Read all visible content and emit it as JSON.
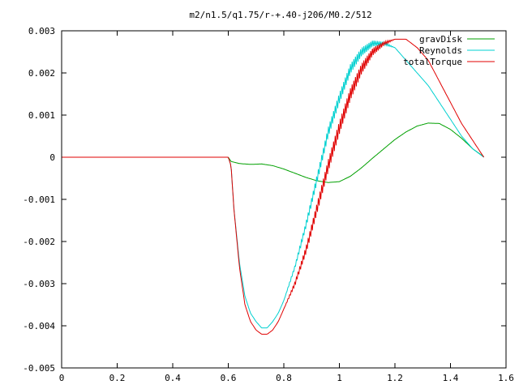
{
  "chart_data": {
    "type": "line",
    "title": "m2/n1.5/q1.75/r-+.40-j206/M0.2/512",
    "xlabel": "",
    "ylabel": "",
    "xlim": [
      0,
      1.6
    ],
    "ylim": [
      -0.005,
      0.003
    ],
    "x_ticks": [
      0,
      0.2,
      0.4,
      0.6,
      0.8,
      1,
      1.2,
      1.4,
      1.6
    ],
    "x_tick_labels": [
      "0",
      "0.2",
      "0.4",
      "0.6",
      "0.8",
      "1",
      "1.2",
      "1.4",
      "1.6"
    ],
    "y_ticks": [
      -0.005,
      -0.004,
      -0.003,
      -0.002,
      -0.001,
      0,
      0.001,
      0.002,
      0.003
    ],
    "y_tick_labels": [
      "-0.005",
      "-0.004",
      "-0.003",
      "-0.002",
      "-0.001",
      "0",
      "0.001",
      "0.002",
      "0.003"
    ],
    "grid": false,
    "legend_position": "top-right",
    "series": [
      {
        "name": "gravDisk",
        "color": "#00a000",
        "noise": 0,
        "x": [
          0,
          0.3,
          0.6,
          0.61,
          0.64,
          0.68,
          0.72,
          0.76,
          0.8,
          0.84,
          0.88,
          0.92,
          0.96,
          1.0,
          1.04,
          1.08,
          1.12,
          1.16,
          1.2,
          1.24,
          1.28,
          1.32,
          1.36,
          1.4,
          1.44,
          1.48,
          1.52
        ],
        "y": [
          0,
          0,
          0,
          -0.0001,
          -0.00015,
          -0.00017,
          -0.00016,
          -0.0002,
          -0.00028,
          -0.00038,
          -0.00048,
          -0.00056,
          -0.0006,
          -0.00058,
          -0.00045,
          -0.00025,
          -2e-05,
          0.0002,
          0.00042,
          0.0006,
          0.00074,
          0.00081,
          0.0008,
          0.00066,
          0.00045,
          0.0002,
          1e-05
        ]
      },
      {
        "name": "Reynolds",
        "color": "#00d0d0",
        "noise": 0.00012,
        "x": [
          0,
          0.3,
          0.6,
          0.61,
          0.62,
          0.64,
          0.66,
          0.68,
          0.7,
          0.72,
          0.74,
          0.76,
          0.78,
          0.8,
          0.84,
          0.88,
          0.92,
          0.96,
          1.0,
          1.04,
          1.08,
          1.12,
          1.16,
          1.2,
          1.24,
          1.28,
          1.32,
          1.36,
          1.4,
          1.44,
          1.48,
          1.52
        ],
        "y": [
          0,
          0,
          0,
          -0.0002,
          -0.0012,
          -0.0025,
          -0.0033,
          -0.0037,
          -0.0039,
          -0.00405,
          -0.00405,
          -0.0039,
          -0.0037,
          -0.0034,
          -0.0026,
          -0.0016,
          -0.0005,
          0.0006,
          0.0014,
          0.0021,
          0.0025,
          0.0027,
          0.0027,
          0.0026,
          0.0023,
          0.002,
          0.0017,
          0.0013,
          0.0009,
          0.0005,
          0.0002,
          0.0
        ]
      },
      {
        "name": "totalTorque",
        "color": "#e00000",
        "noise": 0.00015,
        "x": [
          0,
          0.3,
          0.6,
          0.61,
          0.62,
          0.64,
          0.66,
          0.68,
          0.7,
          0.72,
          0.74,
          0.76,
          0.78,
          0.8,
          0.84,
          0.88,
          0.92,
          0.96,
          1.0,
          1.04,
          1.08,
          1.12,
          1.16,
          1.2,
          1.24,
          1.28,
          1.32,
          1.36,
          1.4,
          1.44,
          1.48,
          1.52
        ],
        "y": [
          0,
          0,
          0,
          -0.0002,
          -0.0012,
          -0.0026,
          -0.0035,
          -0.0039,
          -0.0041,
          -0.0042,
          -0.0042,
          -0.0041,
          -0.0039,
          -0.0036,
          -0.003,
          -0.0022,
          -0.0012,
          -0.0002,
          0.0007,
          0.0015,
          0.0021,
          0.0025,
          0.0027,
          0.0028,
          0.0028,
          0.0026,
          0.0023,
          0.0018,
          0.0013,
          0.0008,
          0.0004,
          0.0
        ]
      }
    ]
  }
}
